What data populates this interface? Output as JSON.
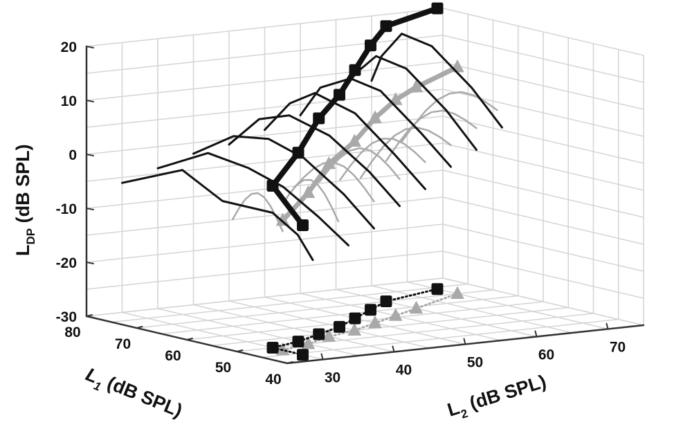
{
  "chart_data": {
    "type": "3d-line",
    "axes": {
      "z": {
        "label_main": "L",
        "label_sub": "DP",
        "label_unit": " (dB SPL)",
        "ticks": [
          "20",
          "10",
          "0",
          "-10",
          "-20",
          "-30"
        ],
        "range": [
          -30,
          20
        ]
      },
      "l1": {
        "label_main": "L",
        "label_sub": "1",
        "label_unit": " (dB SPL)",
        "ticks": [
          "80",
          "70",
          "60",
          "50",
          "40"
        ],
        "range": [
          40,
          80
        ]
      },
      "l2": {
        "label_main": "L",
        "label_sub": "2",
        "label_unit": " (dB SPL)",
        "ticks": [
          "30",
          "40",
          "50",
          "60",
          "70"
        ],
        "range": [
          25,
          75
        ]
      }
    },
    "grid": true,
    "series": [
      {
        "color": "#a9a9a9",
        "marker": "triangle",
        "optimal_path": [
          {
            "l2": 30,
            "l1": 48,
            "ldp": -6
          },
          {
            "l2": 35,
            "l1": 50,
            "ldp": -2
          },
          {
            "l2": 40,
            "l1": 53,
            "ldp": 2
          },
          {
            "l2": 45,
            "l1": 55,
            "ldp": 5
          },
          {
            "l2": 50,
            "l1": 58,
            "ldp": 8
          },
          {
            "l2": 55,
            "l1": 61,
            "ldp": 10
          },
          {
            "l2": 60,
            "l1": 64,
            "ldp": 11
          },
          {
            "l2": 70,
            "l1": 70,
            "ldp": 12
          }
        ],
        "curves": [
          {
            "l2": 30,
            "l1": [
              48,
              58
            ],
            "ldp": [
              -8,
              -8
            ]
          },
          {
            "l2": 35,
            "l1": [
              44,
              55
            ],
            "ldp": [
              -6,
              -5
            ]
          },
          {
            "l2": 40,
            "l1": [
              44,
              60
            ],
            "ldp": [
              -3,
              -4
            ]
          },
          {
            "l2": 45,
            "l1": [
              46,
              62
            ],
            "ldp": [
              0,
              -4
            ]
          },
          {
            "l2": 50,
            "l1": [
              48,
              65
            ],
            "ldp": [
              2,
              -5
            ]
          },
          {
            "l2": 55,
            "l1": [
              50,
              68
            ],
            "ldp": [
              4,
              -6
            ]
          },
          {
            "l2": 60,
            "l1": [
              52,
              70
            ],
            "ldp": [
              6,
              -4
            ]
          },
          {
            "l2": 65,
            "l1": [
              55,
              74
            ],
            "ldp": [
              8,
              -2
            ]
          }
        ]
      },
      {
        "color": "#111111",
        "marker": "square",
        "optimal_path": [
          {
            "l2": 30,
            "l1": 44,
            "ldp": -6
          },
          {
            "l2": 30,
            "l1": 50,
            "ldp": 0
          },
          {
            "l2": 35,
            "l1": 52,
            "ldp": 5
          },
          {
            "l2": 40,
            "l1": 55,
            "ldp": 10
          },
          {
            "l2": 45,
            "l1": 58,
            "ldp": 13
          },
          {
            "l2": 50,
            "l1": 62,
            "ldp": 16
          },
          {
            "l2": 55,
            "l1": 66,
            "ldp": 19
          },
          {
            "l2": 60,
            "l1": 70,
            "ldp": 21
          },
          {
            "l2": 70,
            "l1": 74,
            "ldp": 22
          }
        ],
        "curves": [
          {
            "l2": 30,
            "l1": [
              80,
              68,
              60,
              50,
              45,
              42
            ],
            "ldp": [
              -6,
              -1,
              -5,
              -5,
              -8,
              -12
            ]
          },
          {
            "l2": 35,
            "l1": [
              80,
              70,
              62,
              55,
              48,
              42
            ],
            "ldp": [
              -4,
              1,
              0,
              -2,
              -6,
              -10
            ]
          },
          {
            "l2": 40,
            "l1": [
              80,
              72,
              65,
              58,
              50,
              44
            ],
            "ldp": [
              -2,
              3,
              4,
              2,
              -3,
              -8
            ]
          },
          {
            "l2": 45,
            "l1": [
              80,
              74,
              68,
              60,
              52,
              46
            ],
            "ldp": [
              -1,
              5,
              7,
              5,
              0,
              -5
            ]
          },
          {
            "l2": 50,
            "l1": [
              80,
              75,
              70,
              62,
              54,
              48
            ],
            "ldp": [
              1,
              7,
              10,
              8,
              2,
              -3
            ]
          },
          {
            "l2": 55,
            "l1": [
              80,
              76,
              70,
              64,
              56,
              50
            ],
            "ldp": [
              3,
              9,
              12,
              11,
              5,
              0
            ]
          },
          {
            "l2": 60,
            "l1": [
              80,
              76,
              72,
              66,
              58,
              52
            ],
            "ldp": [
              5,
              11,
              15,
              14,
              8,
              2
            ]
          },
          {
            "l2": 65,
            "l1": [
              80,
              78,
              74,
              68,
              60,
              54
            ],
            "ldp": [
              8,
              13,
              18,
              17,
              11,
              5
            ]
          }
        ]
      }
    ]
  }
}
